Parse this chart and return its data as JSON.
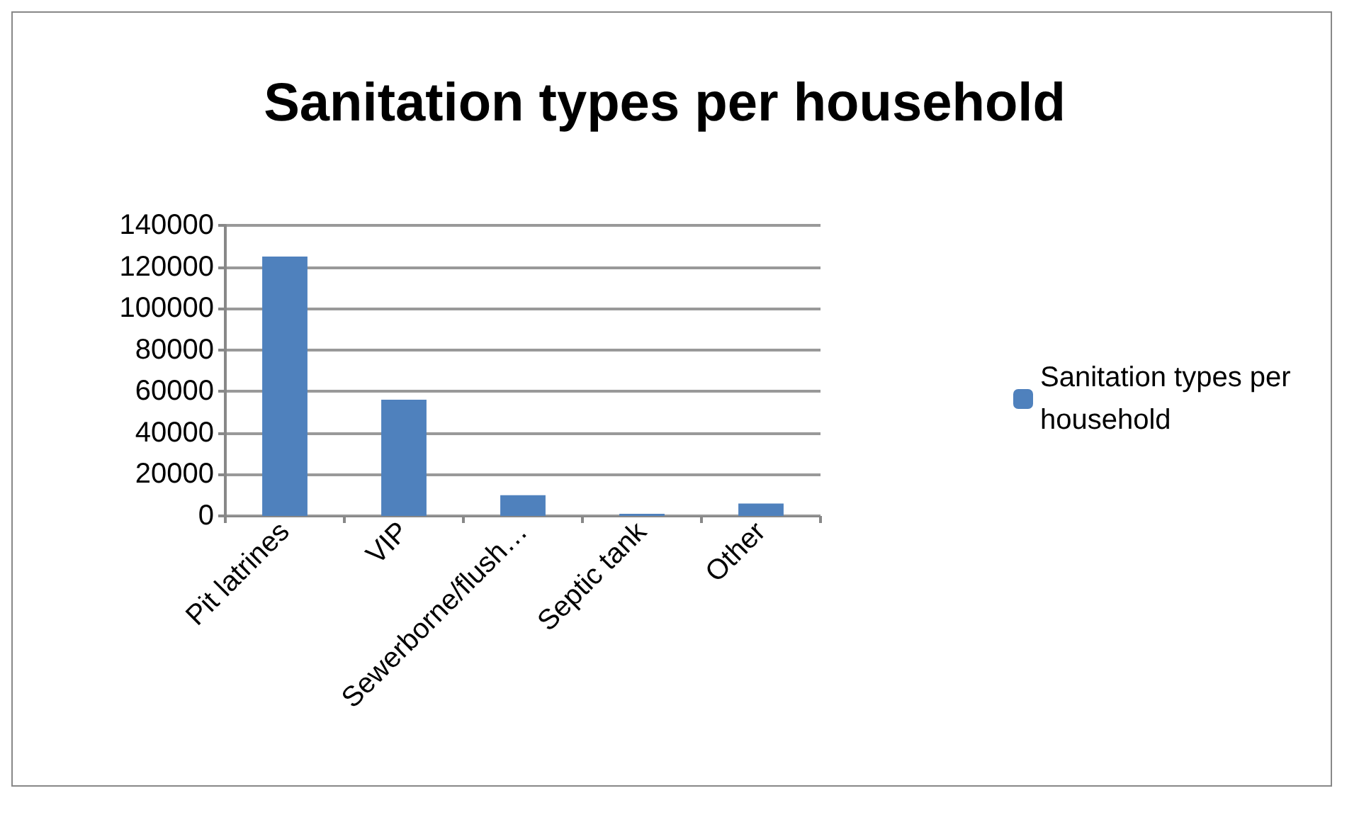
{
  "chart_data": {
    "type": "bar",
    "title": "Sanitation types per household",
    "categories": [
      "Pit latrines",
      "VIP",
      "Sewerborne/flush…",
      "Septic tank",
      "Other"
    ],
    "series": [
      {
        "name": "Sanitation types per household",
        "color": "#4f81bd",
        "values": [
          125000,
          56000,
          10000,
          1000,
          6000
        ]
      }
    ],
    "ylim": [
      0,
      140000
    ],
    "yticks": [
      0,
      20000,
      40000,
      60000,
      80000,
      100000,
      120000,
      140000
    ],
    "grid": "y",
    "legend": "right"
  }
}
